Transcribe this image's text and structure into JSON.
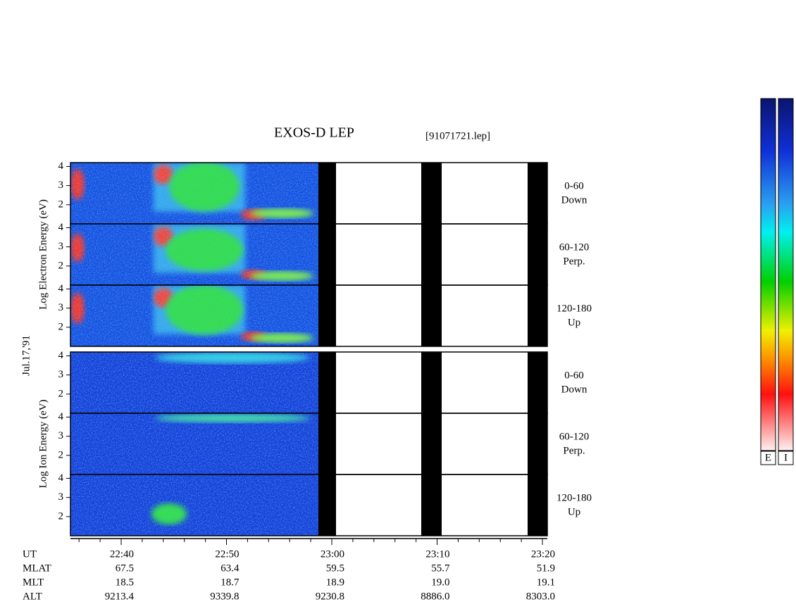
{
  "chart_data": {
    "type": "spectrogram",
    "title": "EXOS-D LEP",
    "file": "[91071721.lep]",
    "date": "Jul.17,'91",
    "ylim": [
      1,
      4.2
    ],
    "yticks": [
      2,
      3,
      4
    ],
    "groups": [
      {
        "label": "Log Electron Energy (eV)",
        "panels": [
          {
            "lines": [
              "0-60",
              "Down"
            ]
          },
          {
            "lines": [
              "60-120",
              "Perp."
            ]
          },
          {
            "lines": [
              "120-180",
              "Up"
            ]
          }
        ]
      },
      {
        "label": "Log Ion Energy (eV)",
        "panels": [
          {
            "lines": [
              "0-60",
              "Down"
            ]
          },
          {
            "lines": [
              "60-120",
              "Perp."
            ]
          },
          {
            "lines": [
              "120-180",
              "Up"
            ]
          }
        ]
      }
    ],
    "x_label": "UT",
    "x_labels": [
      "22:40",
      "22:50",
      "23:00",
      "23:10",
      "23:20"
    ],
    "ephemeris": [
      {
        "name": "MLAT",
        "values": [
          "67.5",
          "63.4",
          "59.5",
          "55.7",
          "51.9"
        ]
      },
      {
        "name": "MLT",
        "values": [
          "18.5",
          "18.7",
          "18.9",
          "19.0",
          "19.1"
        ]
      },
      {
        "name": "ALT",
        "values": [
          "9213.4",
          "9339.8",
          "9230.8",
          "8886.0",
          "8303.0"
        ]
      }
    ],
    "colorbar_labels": [
      "E",
      "I"
    ]
  }
}
